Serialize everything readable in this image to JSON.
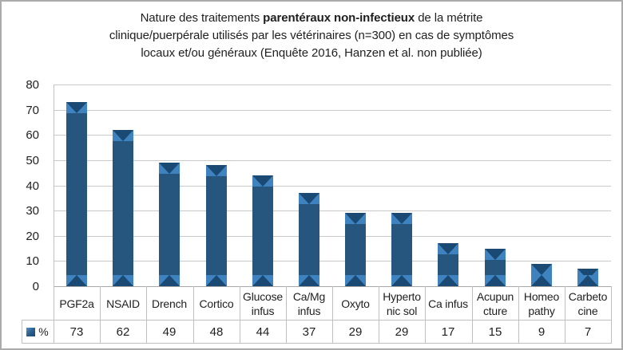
{
  "title": {
    "line1": {
      "pre": "Nature des traitements ",
      "bold": "parentéraux non-infectieux",
      "post": " de la métrite"
    },
    "line2": "clinique/puerpérale utilisés par les vétérinaires (n=300) en cas de symptômes",
    "line3": "locaux et/ou généraux (Enquête 2016, Hanzen et al. non publiée)"
  },
  "chart_data": {
    "type": "bar",
    "categories": [
      "PGF2a",
      "NSAID",
      "Drench",
      "Cortico",
      "Glucose infus",
      "Ca/Mg infus",
      "Oxyto",
      "Hyperto nic sol",
      "Ca infus",
      "Acupun cture",
      "Homeo pathy",
      "Carbeto cine"
    ],
    "category_display_lines": [
      [
        "PGF2a"
      ],
      [
        "NSAID"
      ],
      [
        "Drench"
      ],
      [
        "Cortico"
      ],
      [
        "Glucose",
        "infus"
      ],
      [
        "Ca/Mg",
        "infus"
      ],
      [
        "Oxyto"
      ],
      [
        "Hyperto",
        "nic sol"
      ],
      [
        "Ca infus"
      ],
      [
        "Acupun",
        "cture"
      ],
      [
        "Homeo",
        "pathy"
      ],
      [
        "Carbeto",
        "cine"
      ]
    ],
    "series": [
      {
        "name": "%",
        "values": [
          73,
          62,
          49,
          48,
          44,
          37,
          29,
          29,
          17,
          15,
          9,
          7
        ]
      }
    ],
    "xlabel": "",
    "ylabel": "",
    "ylim": [
      0,
      80
    ],
    "ytick_step": 10,
    "yticks": [
      0,
      10,
      20,
      30,
      40,
      50,
      60,
      70,
      80
    ],
    "grid": true,
    "legend": {
      "label": "%",
      "position": "data-table-left"
    },
    "data_table_shown": true
  },
  "colors": {
    "bar_body": "#26567e",
    "bar_cap_light": "#3e82c0",
    "bar_notch_dark": "#1a4a73",
    "gridline": "#c9c9c9",
    "table_border": "#bfbfbf",
    "frame_border": "#ababab",
    "text": "#1f1f1f"
  }
}
